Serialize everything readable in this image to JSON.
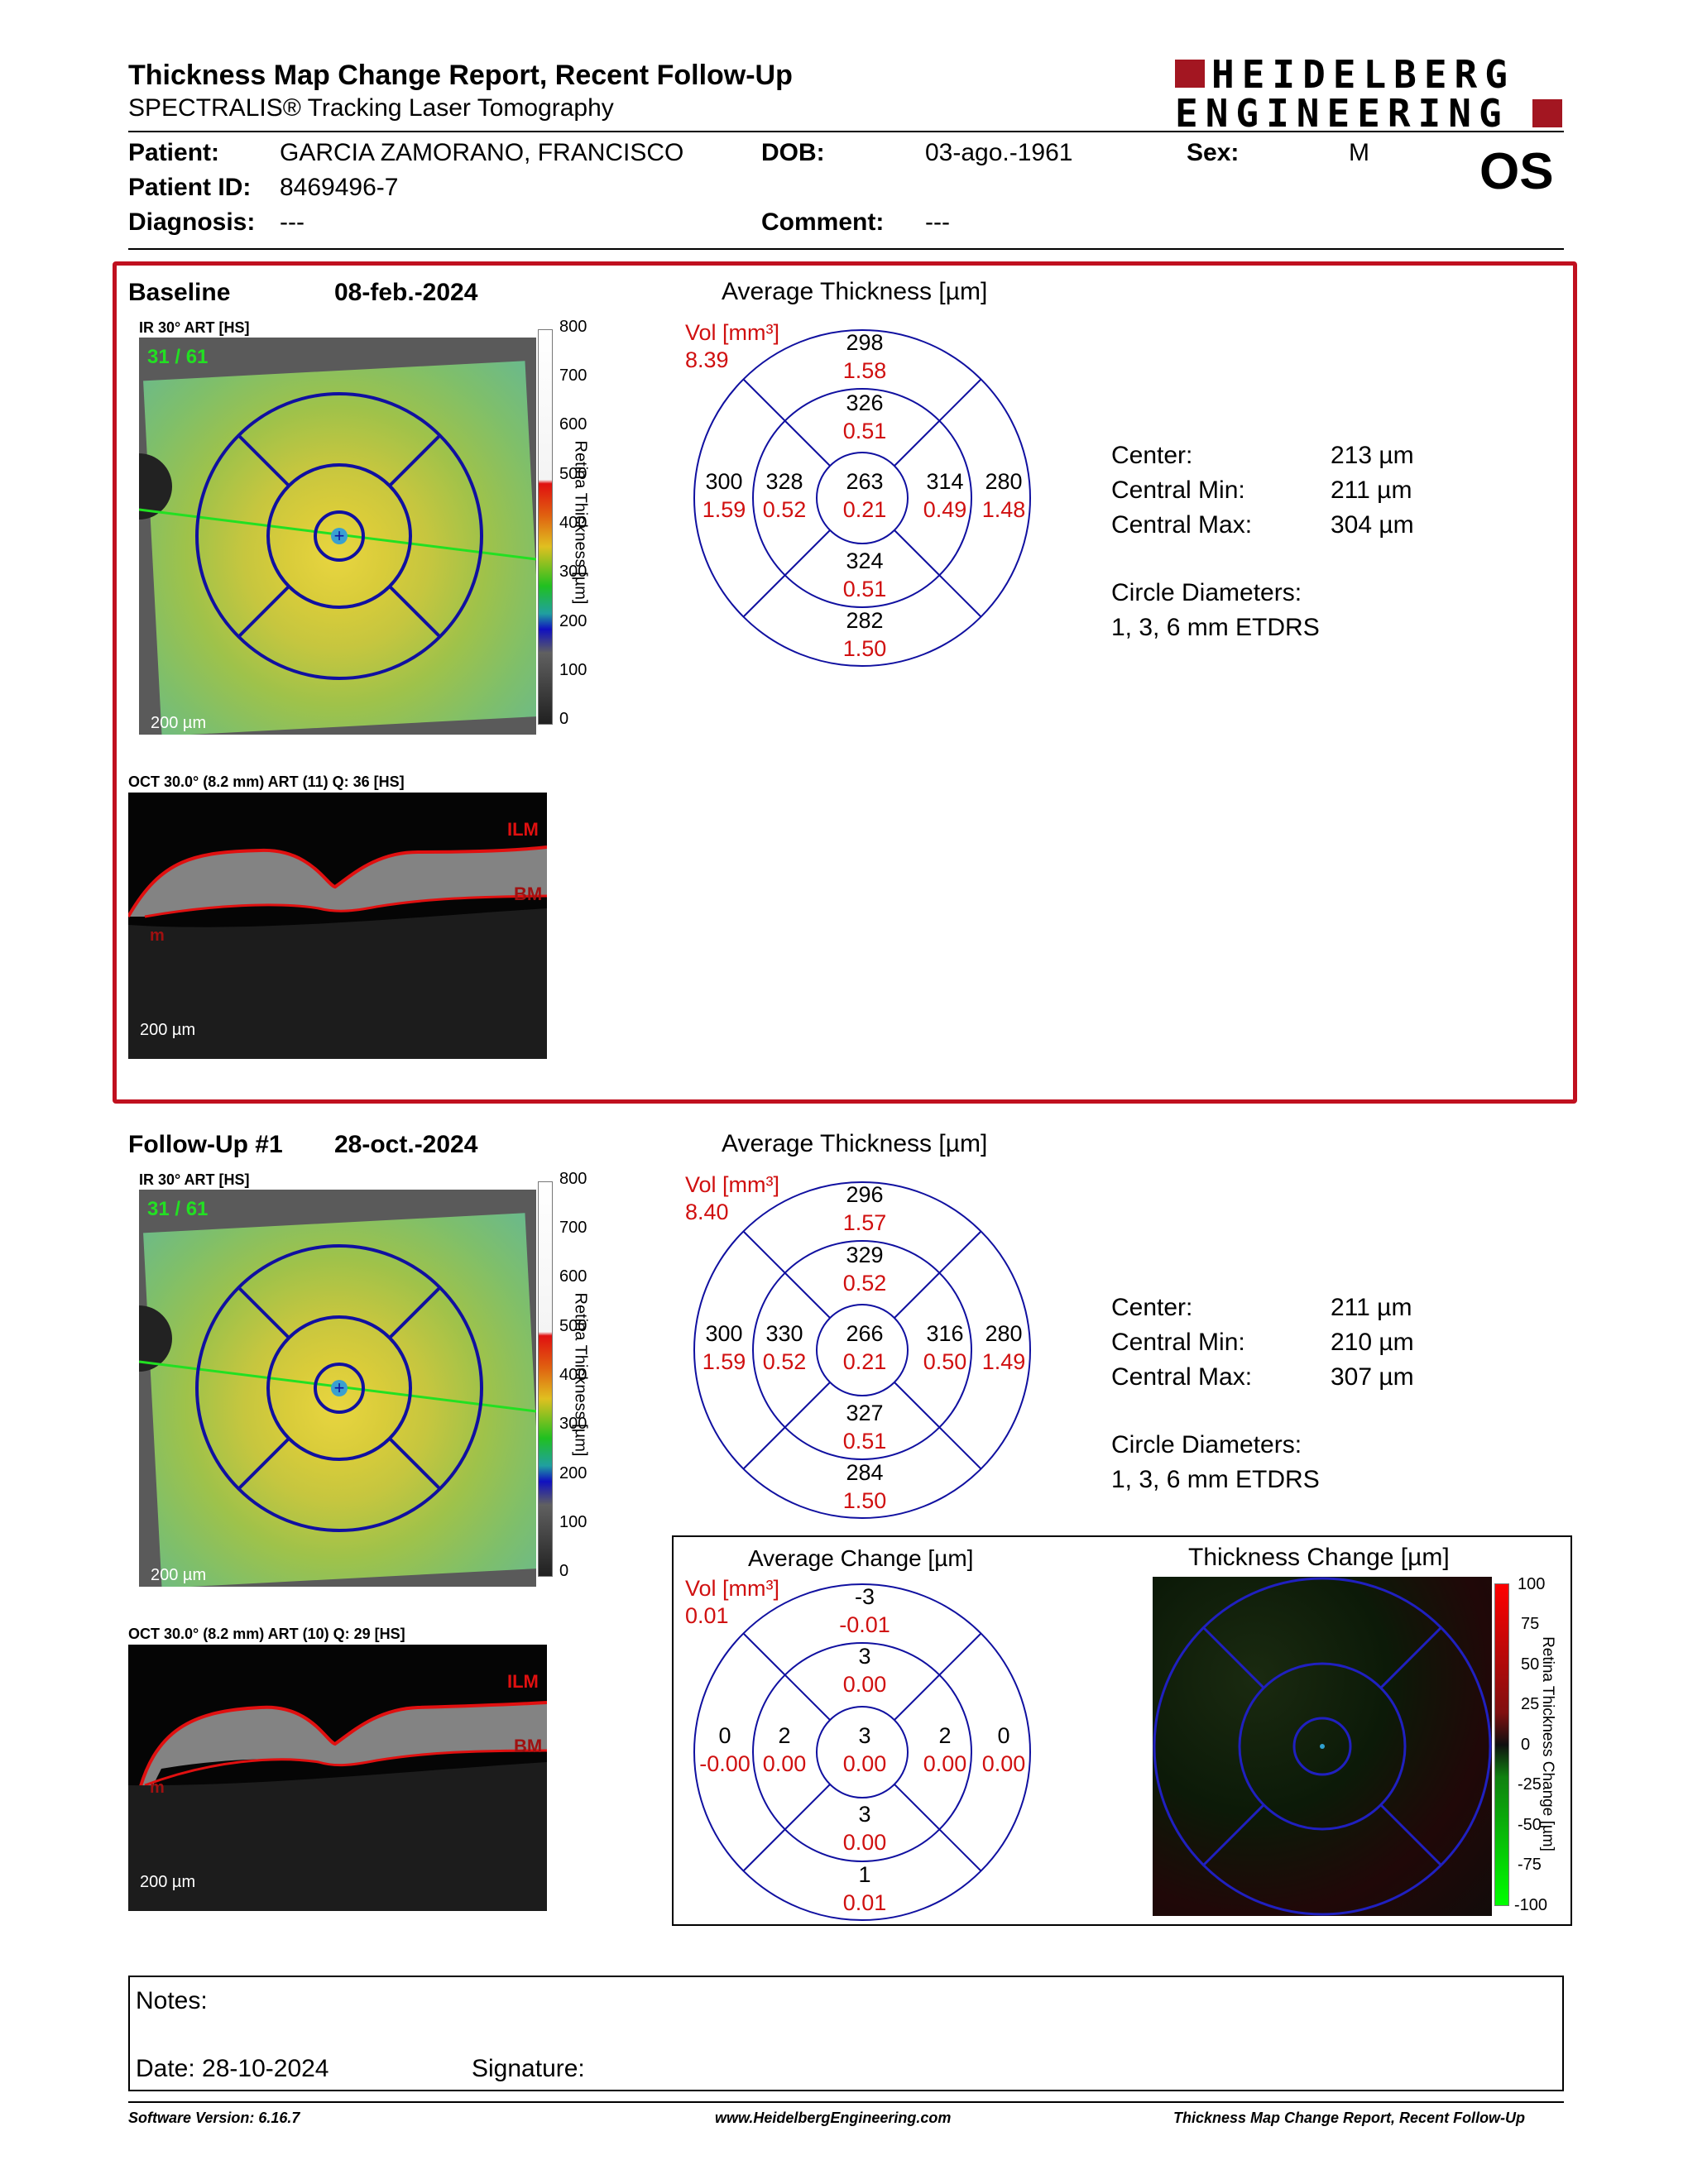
{
  "header": {
    "title": "Thickness Map Change Report, Recent Follow-Up",
    "subtitle": "SPECTRALIS® Tracking Laser Tomography",
    "logo_line1": "HEIDELBERG",
    "logo_line2": "ENGINEERING"
  },
  "patient": {
    "patient_label": "Patient:",
    "patient_value": "GARCIA ZAMORANO, FRANCISCO",
    "dob_label": "DOB:",
    "dob_value": "03-ago.-1961",
    "sex_label": "Sex:",
    "sex_value": "M",
    "id_label": "Patient ID:",
    "id_value": "8469496-7",
    "eye": "OS",
    "diagnosis_label": "Diagnosis:",
    "diagnosis_value": "---",
    "comment_label": "Comment:",
    "comment_value": "---"
  },
  "scale": {
    "ticks": [
      "800",
      "700",
      "600",
      "500",
      "400",
      "300",
      "200",
      "100",
      "0"
    ],
    "axis_label": "Retina Thickness [µm]",
    "scalebar": "200 µm"
  },
  "baseline": {
    "label": "Baseline",
    "date": "08-feb.-2024",
    "ir_label": "IR 30° ART [HS]",
    "ir_overlay": "31 / 61",
    "oct_label": "OCT 30.0° (8.2 mm) ART (11) Q: 36 [HS]",
    "ilm": "ILM",
    "bm": "BM",
    "m": "m",
    "map_title": "Average Thickness [µm]",
    "vol_label": "Vol [mm³]",
    "vol_value": "8.39",
    "sectors": {
      "outer_top": {
        "t": "298",
        "v": "1.58"
      },
      "inner_top": {
        "t": "326",
        "v": "0.51"
      },
      "outer_left": {
        "t": "300",
        "v": "1.59"
      },
      "inner_left": {
        "t": "328",
        "v": "0.52"
      },
      "center": {
        "t": "263",
        "v": "0.21"
      },
      "inner_right": {
        "t": "314",
        "v": "0.49"
      },
      "outer_right": {
        "t": "280",
        "v": "1.48"
      },
      "inner_bottom": {
        "t": "324",
        "v": "0.51"
      },
      "outer_bottom": {
        "t": "282",
        "v": "1.50"
      }
    },
    "stats": {
      "center_label": "Center:",
      "center_value": "213 µm",
      "min_label": "Central Min:",
      "min_value": "211 µm",
      "max_label": "Central Max:",
      "max_value": "304 µm",
      "diam_label": "Circle Diameters:",
      "diam_value": "1, 3, 6 mm ETDRS"
    }
  },
  "followup": {
    "label": "Follow-Up #1",
    "date": "28-oct.-2024",
    "ir_label": "IR 30° ART [HS]",
    "ir_overlay": "31 / 61",
    "oct_label": "OCT 30.0° (8.2 mm) ART (10) Q: 29 [HS]",
    "ilm": "ILM",
    "bm": "BM",
    "m": "m",
    "map_title": "Average Thickness [µm]",
    "vol_label": "Vol [mm³]",
    "vol_value": "8.40",
    "sectors": {
      "outer_top": {
        "t": "296",
        "v": "1.57"
      },
      "inner_top": {
        "t": "329",
        "v": "0.52"
      },
      "outer_left": {
        "t": "300",
        "v": "1.59"
      },
      "inner_left": {
        "t": "330",
        "v": "0.52"
      },
      "center": {
        "t": "266",
        "v": "0.21"
      },
      "inner_right": {
        "t": "316",
        "v": "0.50"
      },
      "outer_right": {
        "t": "280",
        "v": "1.49"
      },
      "inner_bottom": {
        "t": "327",
        "v": "0.51"
      },
      "outer_bottom": {
        "t": "284",
        "v": "1.50"
      }
    },
    "stats": {
      "center_label": "Center:",
      "center_value": "211 µm",
      "min_label": "Central Min:",
      "min_value": "210 µm",
      "max_label": "Central Max:",
      "max_value": "307 µm",
      "diam_label": "Circle Diameters:",
      "diam_value": "1, 3, 6 mm ETDRS"
    }
  },
  "change": {
    "map_title": "Average Change [µm]",
    "vol_label": "Vol [mm³]",
    "vol_value": "0.01",
    "sectors": {
      "outer_top": {
        "t": "-3",
        "v": "-0.01"
      },
      "inner_top": {
        "t": "3",
        "v": "0.00"
      },
      "outer_left": {
        "t": "0",
        "v": "-0.00"
      },
      "inner_left": {
        "t": "2",
        "v": "0.00"
      },
      "center": {
        "t": "3",
        "v": "0.00"
      },
      "inner_right": {
        "t": "2",
        "v": "0.00"
      },
      "outer_right": {
        "t": "0",
        "v": "0.00"
      },
      "inner_bottom": {
        "t": "3",
        "v": "0.00"
      },
      "outer_bottom": {
        "t": "1",
        "v": "0.01"
      }
    },
    "thickness_change_title": "Thickness Change [µm]",
    "change_ticks": [
      "100",
      "75",
      "50",
      "25",
      "0",
      "-25",
      "-50",
      "-75",
      "-100"
    ],
    "change_axis_label": "Retina Thickness Change [µm]"
  },
  "notes": {
    "notes_label": "Notes:",
    "date_label": "Date: 28-10-2024",
    "signature_label": "Signature:"
  },
  "footer": {
    "software": "Software Version: 6.16.7",
    "website": "www.HeidelbergEngineering.com",
    "report": "Thickness Map Change Report, Recent Follow-Up"
  },
  "colors": {
    "frame_red": "#c0101f",
    "grid_blue": "#1010a0",
    "volume_red": "#d01010",
    "overlay_green": "#22e022"
  }
}
